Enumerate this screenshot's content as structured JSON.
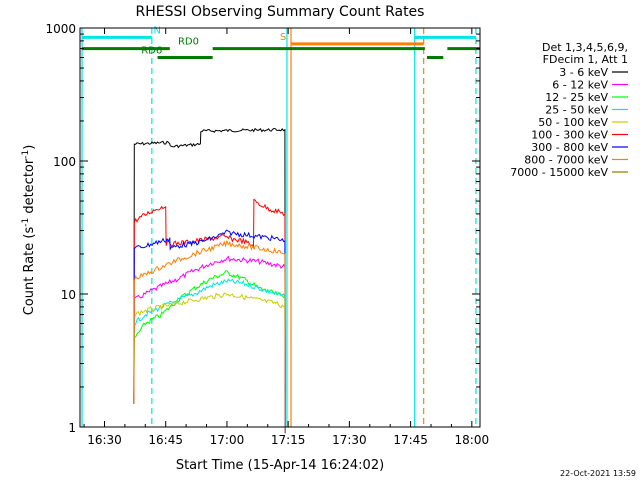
{
  "chart_data": {
    "type": "line",
    "title": "RHESSI Observing Summary Count Rates",
    "xlabel": "Start Time (15-Apr-14 16:24:02)",
    "ylabel": "Count Rate (s⁻¹ detector⁻¹)",
    "ylabel_main": "Count Rate (s",
    "ylabel_sup1": "-1",
    "ylabel_mid": " detector",
    "ylabel_sup2": "-1",
    "ylabel_end": ")",
    "y_scale": "log",
    "x_unit": "minutes of day",
    "xlim": [
      984,
      1082
    ],
    "ylim": [
      1,
      1000
    ],
    "x_ticks": [
      {
        "value": 990,
        "label": "16:30"
      },
      {
        "value": 1005,
        "label": "16:45"
      },
      {
        "value": 1020,
        "label": "17:00"
      },
      {
        "value": 1035,
        "label": "17:15"
      },
      {
        "value": 1050,
        "label": "17:30"
      },
      {
        "value": 1065,
        "label": "17:45"
      },
      {
        "value": 1080,
        "label": "18:00"
      }
    ],
    "y_ticks": [
      {
        "value": 1,
        "label": "1"
      },
      {
        "value": 10,
        "label": "10"
      },
      {
        "value": 100,
        "label": "100"
      },
      {
        "value": 1000,
        "label": "1000"
      }
    ],
    "legend_header": [
      "Det 1,3,4,5,6,9,",
      "FDecim 1, Att 1"
    ],
    "legend_position": "right",
    "footer_date": "22-Oct-2021 13:59",
    "vertical_markers": [
      {
        "x": 984.5,
        "style": "solid",
        "color": "#00e5e5"
      },
      {
        "x": 1001.6,
        "style": "dashed",
        "color": "#00e5e5"
      },
      {
        "x": 1034.7,
        "style": "solid",
        "color": "#00e5e5"
      },
      {
        "x": 1035.7,
        "style": "solid",
        "color": "#ff7f00"
      },
      {
        "x": 1066.0,
        "style": "solid",
        "color": "#00e5e5"
      },
      {
        "x": 1068.2,
        "style": "dashed",
        "color": "#ff7f00"
      },
      {
        "x": 1081.0,
        "style": "dashed",
        "color": "#00e5e5"
      }
    ],
    "status_bars": [
      {
        "label": "N",
        "color": "#00e5e5",
        "level": 850,
        "segments": [
          [
            984.5,
            1001.6
          ],
          [
            1066.0,
            1081.0
          ]
        ],
        "label_x": 1002.0
      },
      {
        "label": "S",
        "color": "#ff7f00",
        "level": 760,
        "segments": [
          [
            1035.7,
            1068.2
          ]
        ],
        "label_x": 1033.0
      },
      {
        "label": "RD0",
        "color": "#007a00",
        "level": 700,
        "segments": [
          [
            984.5,
            1006.0
          ],
          [
            1016.5,
            1068.5
          ],
          [
            1074.0,
            1082.0
          ]
        ],
        "label_x": 1008.0
      },
      {
        "label": "RD6",
        "color": "#007a00",
        "level": 600,
        "segments": [
          [
            1003.0,
            1012.0
          ],
          [
            1007.0,
            1016.5
          ],
          [
            1069.0,
            1073.0
          ]
        ],
        "label_x": 999.0
      }
    ],
    "series": [
      {
        "name": "3 - 6 keV",
        "color": "#000000",
        "x": [
          997.2,
          997.3,
          1006.0,
          1006.1,
          1013.5,
          1013.6,
          1034.2,
          1034.3
        ],
        "y": [
          1.5,
          134,
          138,
          128,
          134,
          168,
          172,
          0.9
        ]
      },
      {
        "name": "6 - 12 keV",
        "color": "#ff00ff",
        "x": [
          997.2,
          997.3,
          1000,
          1004,
          1008,
          1012,
          1016,
          1020,
          1024,
          1028,
          1032,
          1034.2,
          1034.3
        ],
        "y": [
          1.5,
          9,
          10,
          11.5,
          13,
          15,
          17,
          18.5,
          18,
          17.5,
          16.5,
          16,
          0.9
        ]
      },
      {
        "name": "12 - 25 keV",
        "color": "#00ff00",
        "x": [
          997.2,
          997.3,
          1000,
          1004,
          1008,
          1012,
          1016,
          1020,
          1024,
          1028,
          1032,
          1034.2,
          1034.3
        ],
        "y": [
          2.2,
          4.6,
          6,
          7,
          9,
          11,
          13,
          14.5,
          13,
          11,
          10,
          9.5,
          0.9
        ]
      },
      {
        "name": "25 - 50 keV",
        "color": "#00e5e5",
        "x": [
          997.2,
          997.3,
          1000,
          1004,
          1008,
          1012,
          1016,
          1020,
          1024,
          1028,
          1032,
          1034.2,
          1034.3
        ],
        "y": [
          1.5,
          6,
          7,
          8,
          9,
          10,
          11.5,
          12.5,
          12,
          11,
          10,
          9.5,
          0.9
        ]
      },
      {
        "name": "50 - 100 keV",
        "color": "#cccc00",
        "x": [
          997.2,
          997.3,
          1000,
          1004,
          1008,
          1012,
          1016,
          1020,
          1024,
          1028,
          1032,
          1034.2,
          1034.3
        ],
        "y": [
          1.5,
          7,
          7.5,
          8,
          8.5,
          9,
          9.5,
          10,
          9.5,
          9,
          8.5,
          8,
          0.9
        ]
      },
      {
        "name": "100 - 300 keV",
        "color": "#ff0000",
        "x": [
          997.2,
          997.3,
          999,
          1001,
          1003,
          1005,
          1005.1,
          1008,
          1012,
          1016,
          1019,
          1021,
          1024,
          1026.5,
          1026.6,
          1030,
          1034.2,
          1034.3
        ],
        "y": [
          1.5,
          35,
          38,
          41,
          44,
          46,
          24,
          24,
          25,
          26,
          27,
          26,
          25,
          23,
          50,
          44,
          40,
          0.9
        ]
      },
      {
        "name": "300 - 800 keV",
        "color": "#0000ff",
        "x": [
          997.2,
          997.3,
          1000,
          1004,
          1006,
          1006.1,
          1008,
          1012,
          1016,
          1020,
          1024,
          1028,
          1032,
          1034.2,
          1034.3
        ],
        "y": [
          1.5,
          22,
          23,
          25,
          26,
          22,
          23,
          24,
          26,
          29,
          28,
          27,
          26,
          25,
          0.9
        ]
      },
      {
        "name": "800 - 7000 keV",
        "color": "#ff7f00",
        "x": [
          997.2,
          997.3,
          1000,
          1004,
          1008,
          1012,
          1016,
          1020,
          1024,
          1028,
          1032,
          1034.2,
          1034.3
        ],
        "y": [
          1.5,
          13,
          14,
          16,
          18,
          20,
          22,
          24,
          23,
          22,
          21,
          20,
          0.9
        ]
      },
      {
        "name": "7000 - 15000 keV",
        "color": "#808000",
        "x": [],
        "y": []
      }
    ]
  }
}
